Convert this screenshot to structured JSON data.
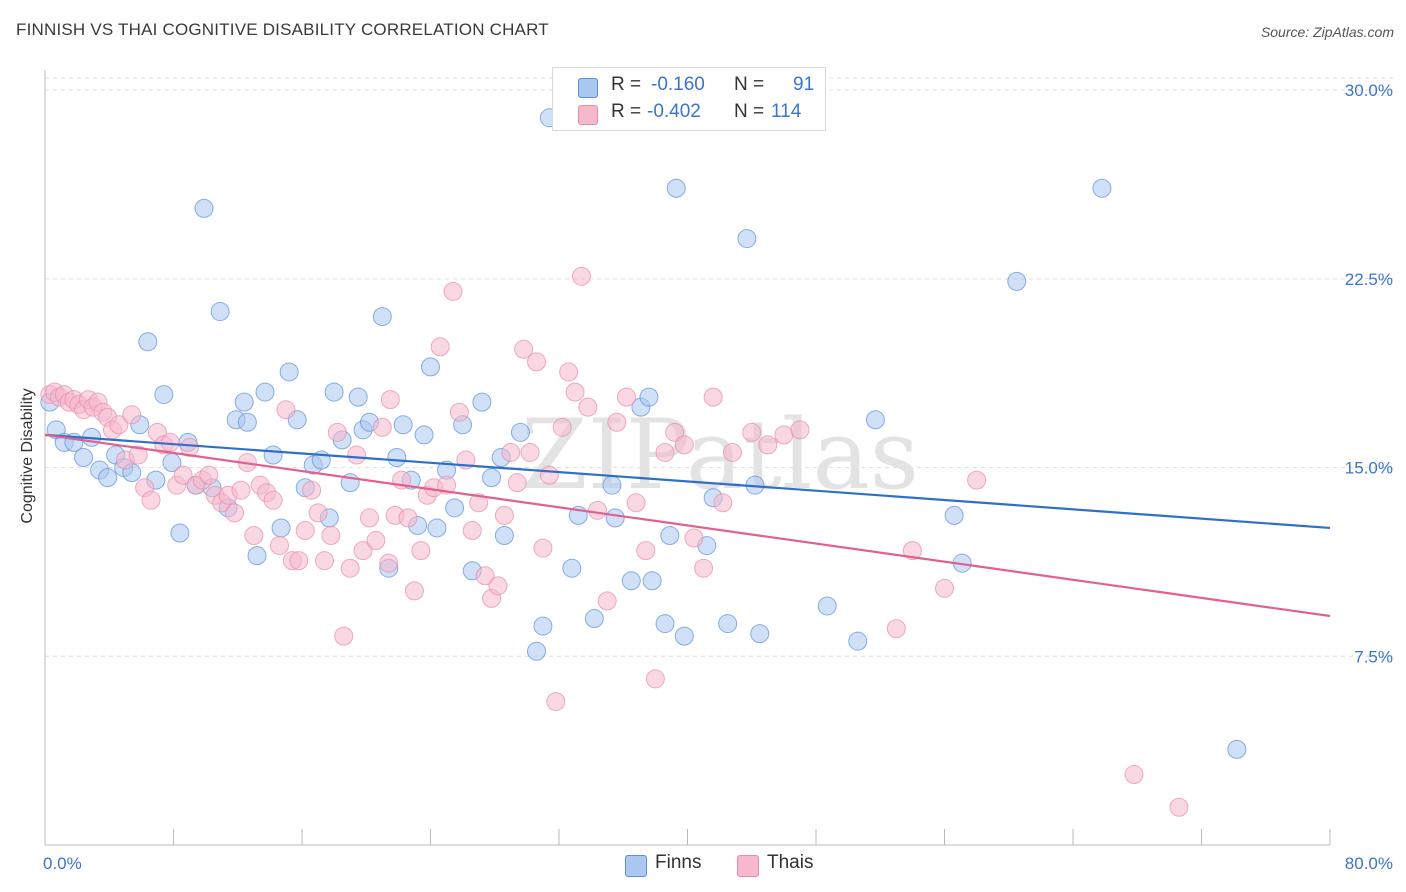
{
  "title": "FINNISH VS THAI COGNITIVE DISABILITY CORRELATION CHART",
  "source": "Source: ZipAtlas.com",
  "watermark": "ZIPatlas",
  "stats": {
    "finns": {
      "r_label": "R =",
      "r_value": "-0.160",
      "n_label": "N =",
      "n_value": "91"
    },
    "thais": {
      "r_label": "R =",
      "r_value": "-0.402",
      "n_label": "N =",
      "n_value": "114"
    }
  },
  "legend": {
    "finns": "Finns",
    "thais": "Thais"
  },
  "colors": {
    "finns_fill": "#aac8f0",
    "finns_stroke": "#5b8ed8",
    "finns_line": "#2f6fcc",
    "thais_fill": "#f6b8cc",
    "thais_stroke": "#e88aa8",
    "thais_line": "#e2608e",
    "tick_label": "#3a74d0",
    "grid": "#dddddd"
  },
  "chart_data": {
    "type": "scatter",
    "title": "FINNISH VS THAI COGNITIVE DISABILITY CORRELATION CHART",
    "xlabel": "",
    "ylabel": "Cognitive Disability",
    "xlim": [
      0,
      80
    ],
    "ylim": [
      0,
      30.8
    ],
    "x_tick_labels": [
      "0.0%",
      "80.0%"
    ],
    "y_ticks": [
      7.5,
      15.0,
      22.5,
      30.0
    ],
    "y_tick_labels": [
      "7.5%",
      "15.0%",
      "22.5%",
      "30.0%"
    ],
    "grid": "horizontal dashed",
    "legend_position": "bottom-center",
    "series": [
      {
        "name": "Finns",
        "r": -0.16,
        "n": 91,
        "trend": {
          "x": [
            0,
            80
          ],
          "y": [
            16.3,
            12.6
          ]
        },
        "points": [
          [
            0.3,
            17.6
          ],
          [
            0.7,
            16.5
          ],
          [
            1.2,
            16.0
          ],
          [
            1.8,
            16.0
          ],
          [
            2.4,
            15.4
          ],
          [
            2.9,
            16.2
          ],
          [
            3.4,
            14.9
          ],
          [
            3.9,
            14.6
          ],
          [
            4.4,
            15.5
          ],
          [
            4.9,
            15.0
          ],
          [
            5.4,
            14.8
          ],
          [
            5.9,
            16.7
          ],
          [
            6.4,
            20.0
          ],
          [
            6.9,
            14.5
          ],
          [
            7.4,
            17.9
          ],
          [
            7.9,
            15.2
          ],
          [
            8.4,
            12.4
          ],
          [
            8.9,
            16.0
          ],
          [
            9.4,
            14.3
          ],
          [
            9.9,
            25.3
          ],
          [
            10.4,
            14.2
          ],
          [
            10.9,
            21.2
          ],
          [
            11.4,
            13.4
          ],
          [
            11.9,
            16.9
          ],
          [
            12.4,
            17.6
          ],
          [
            12.6,
            16.8
          ],
          [
            13.2,
            11.5
          ],
          [
            13.7,
            18.0
          ],
          [
            14.2,
            15.5
          ],
          [
            14.7,
            12.6
          ],
          [
            15.2,
            18.8
          ],
          [
            15.7,
            16.9
          ],
          [
            16.2,
            14.2
          ],
          [
            16.7,
            15.1
          ],
          [
            17.2,
            15.3
          ],
          [
            17.7,
            13.0
          ],
          [
            18.0,
            18.0
          ],
          [
            18.5,
            16.1
          ],
          [
            19.0,
            14.4
          ],
          [
            19.5,
            17.8
          ],
          [
            19.8,
            16.5
          ],
          [
            20.2,
            16.8
          ],
          [
            21.0,
            21.0
          ],
          [
            21.4,
            11.0
          ],
          [
            21.9,
            15.4
          ],
          [
            22.3,
            16.7
          ],
          [
            22.8,
            14.5
          ],
          [
            23.2,
            12.7
          ],
          [
            23.6,
            16.3
          ],
          [
            24.0,
            19.0
          ],
          [
            24.4,
            12.6
          ],
          [
            25.0,
            14.9
          ],
          [
            25.5,
            13.4
          ],
          [
            26.0,
            16.7
          ],
          [
            26.6,
            10.9
          ],
          [
            27.2,
            17.6
          ],
          [
            27.8,
            14.6
          ],
          [
            28.4,
            15.4
          ],
          [
            28.6,
            12.3
          ],
          [
            29.6,
            16.4
          ],
          [
            30.6,
            7.7
          ],
          [
            31.0,
            8.7
          ],
          [
            31.4,
            28.9
          ],
          [
            32.8,
            11.0
          ],
          [
            33.2,
            13.1
          ],
          [
            34.2,
            9.0
          ],
          [
            35.3,
            14.3
          ],
          [
            35.5,
            13.0
          ],
          [
            36.5,
            10.5
          ],
          [
            37.1,
            17.4
          ],
          [
            37.6,
            17.8
          ],
          [
            37.8,
            10.5
          ],
          [
            38.6,
            8.8
          ],
          [
            38.9,
            12.3
          ],
          [
            39.3,
            26.1
          ],
          [
            39.8,
            8.3
          ],
          [
            41.2,
            11.9
          ],
          [
            41.6,
            13.8
          ],
          [
            42.5,
            8.8
          ],
          [
            43.7,
            24.1
          ],
          [
            44.2,
            14.3
          ],
          [
            44.5,
            8.4
          ],
          [
            48.7,
            9.5
          ],
          [
            50.6,
            8.1
          ],
          [
            51.7,
            16.9
          ],
          [
            56.6,
            13.1
          ],
          [
            57.1,
            11.2
          ],
          [
            60.5,
            22.4
          ],
          [
            65.8,
            26.1
          ],
          [
            74.2,
            3.8
          ],
          [
            43.6,
            29.7
          ]
        ]
      },
      {
        "name": "Thais",
        "r": -0.402,
        "n": 114,
        "trend": {
          "x": [
            0,
            80
          ],
          "y": [
            16.3,
            9.1
          ]
        },
        "points": [
          [
            0.3,
            17.9
          ],
          [
            0.6,
            18.0
          ],
          [
            0.9,
            17.8
          ],
          [
            1.2,
            17.9
          ],
          [
            1.5,
            17.6
          ],
          [
            1.8,
            17.7
          ],
          [
            2.1,
            17.5
          ],
          [
            2.4,
            17.3
          ],
          [
            2.7,
            17.7
          ],
          [
            3.0,
            17.4
          ],
          [
            3.3,
            17.6
          ],
          [
            3.6,
            17.2
          ],
          [
            3.9,
            17.0
          ],
          [
            4.2,
            16.5
          ],
          [
            4.6,
            16.7
          ],
          [
            5.0,
            15.3
          ],
          [
            5.4,
            17.1
          ],
          [
            5.8,
            15.5
          ],
          [
            6.2,
            14.2
          ],
          [
            6.6,
            13.7
          ],
          [
            7.0,
            16.4
          ],
          [
            7.4,
            15.9
          ],
          [
            7.8,
            16.0
          ],
          [
            8.2,
            14.3
          ],
          [
            8.6,
            14.7
          ],
          [
            9.0,
            15.8
          ],
          [
            9.4,
            14.3
          ],
          [
            9.8,
            14.5
          ],
          [
            10.2,
            14.7
          ],
          [
            10.6,
            13.9
          ],
          [
            11.0,
            13.6
          ],
          [
            11.4,
            13.9
          ],
          [
            11.8,
            13.2
          ],
          [
            12.2,
            14.1
          ],
          [
            12.6,
            15.2
          ],
          [
            13.0,
            12.3
          ],
          [
            13.4,
            14.3
          ],
          [
            13.8,
            14.0
          ],
          [
            14.2,
            13.7
          ],
          [
            14.6,
            11.9
          ],
          [
            15.0,
            17.3
          ],
          [
            15.4,
            11.3
          ],
          [
            15.8,
            11.3
          ],
          [
            16.2,
            12.5
          ],
          [
            16.6,
            14.1
          ],
          [
            17.0,
            13.2
          ],
          [
            17.4,
            11.3
          ],
          [
            17.8,
            12.3
          ],
          [
            18.2,
            16.4
          ],
          [
            18.6,
            8.3
          ],
          [
            19.0,
            11.0
          ],
          [
            19.4,
            15.5
          ],
          [
            19.8,
            11.7
          ],
          [
            20.2,
            13.0
          ],
          [
            20.6,
            12.1
          ],
          [
            21.0,
            16.6
          ],
          [
            21.4,
            11.2
          ],
          [
            21.8,
            13.1
          ],
          [
            22.2,
            14.5
          ],
          [
            22.6,
            13.0
          ],
          [
            23.0,
            10.1
          ],
          [
            23.4,
            11.7
          ],
          [
            23.8,
            13.9
          ],
          [
            24.2,
            14.2
          ],
          [
            24.6,
            19.8
          ],
          [
            25.0,
            14.3
          ],
          [
            25.4,
            22.0
          ],
          [
            25.8,
            17.2
          ],
          [
            26.2,
            15.3
          ],
          [
            26.6,
            12.5
          ],
          [
            27.0,
            13.6
          ],
          [
            27.4,
            10.7
          ],
          [
            27.8,
            9.8
          ],
          [
            28.2,
            10.3
          ],
          [
            28.6,
            13.1
          ],
          [
            29.0,
            15.6
          ],
          [
            29.4,
            14.4
          ],
          [
            29.8,
            19.7
          ],
          [
            30.2,
            15.6
          ],
          [
            30.6,
            19.2
          ],
          [
            31.0,
            11.8
          ],
          [
            31.4,
            14.7
          ],
          [
            31.8,
            5.7
          ],
          [
            32.2,
            16.6
          ],
          [
            32.6,
            18.8
          ],
          [
            33.0,
            18.0
          ],
          [
            33.4,
            22.6
          ],
          [
            33.8,
            17.4
          ],
          [
            34.4,
            13.3
          ],
          [
            35.0,
            9.7
          ],
          [
            35.6,
            16.8
          ],
          [
            36.2,
            17.8
          ],
          [
            36.8,
            13.6
          ],
          [
            37.4,
            11.7
          ],
          [
            38.0,
            6.6
          ],
          [
            38.6,
            15.6
          ],
          [
            39.2,
            16.4
          ],
          [
            39.8,
            15.9
          ],
          [
            40.4,
            12.2
          ],
          [
            41.0,
            11.0
          ],
          [
            41.6,
            17.8
          ],
          [
            42.2,
            13.6
          ],
          [
            42.8,
            15.6
          ],
          [
            44.0,
            16.4
          ],
          [
            45.0,
            15.9
          ],
          [
            46.0,
            16.3
          ],
          [
            47.0,
            16.5
          ],
          [
            53.0,
            8.6
          ],
          [
            54.0,
            11.7
          ],
          [
            56.0,
            10.2
          ],
          [
            58.0,
            14.5
          ],
          [
            67.8,
            2.8
          ],
          [
            70.6,
            1.5
          ],
          [
            21.5,
            17.7
          ]
        ]
      }
    ]
  }
}
